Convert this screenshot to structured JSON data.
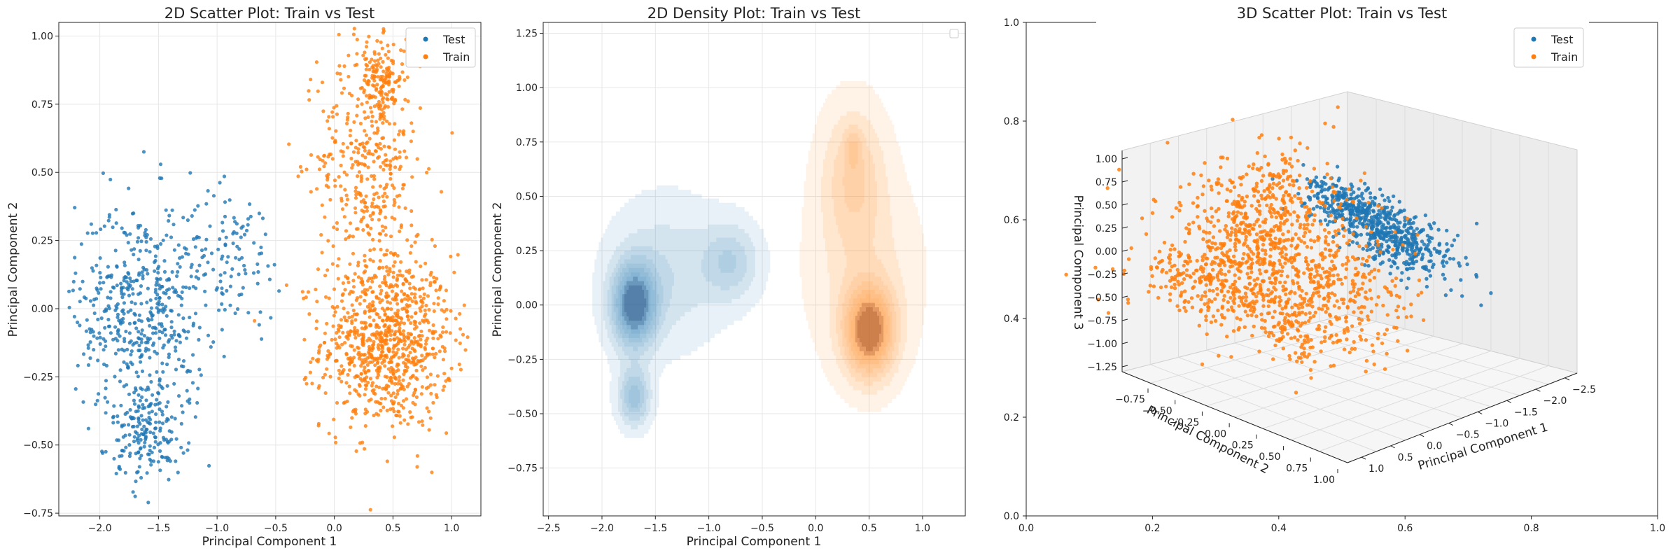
{
  "colors": {
    "test": "#1f77b4",
    "train": "#ff7f0e",
    "grid": "#e6e6e6"
  },
  "chart_data": [
    {
      "type": "scatter",
      "title": "2D Scatter Plot: Train vs Test",
      "xlabel": "Principal Component 1",
      "ylabel": "Principal Component 2",
      "xlim": [
        -2.35,
        1.25
      ],
      "ylim": [
        -0.76,
        1.05
      ],
      "xticks": [
        -2.0,
        -1.5,
        -1.0,
        -0.5,
        0.0,
        0.5,
        1.0
      ],
      "xtick_labels": [
        "−2.0",
        "−1.5",
        "−1.0",
        "−0.5",
        "0.0",
        "0.5",
        "1.0"
      ],
      "yticks": [
        -0.75,
        -0.5,
        -0.25,
        0.0,
        0.25,
        0.5,
        0.75,
        1.0
      ],
      "ytick_labels": [
        "−0.75",
        "−0.50",
        "−0.25",
        "0.00",
        "0.25",
        "0.50",
        "0.75",
        "1.00"
      ],
      "grid": true,
      "legend_position": "top-right",
      "series": [
        {
          "name": "Test",
          "clusters": [
            {
              "cx": -1.65,
              "cy": 0.0,
              "sx": 0.28,
              "sy": 0.2,
              "n": 500
            },
            {
              "cx": -1.6,
              "cy": -0.45,
              "sx": 0.15,
              "sy": 0.09,
              "n": 180
            },
            {
              "cx": -0.85,
              "cy": 0.2,
              "sx": 0.2,
              "sy": 0.12,
              "n": 100
            }
          ]
        },
        {
          "name": "Train",
          "clusters": [
            {
              "cx": 0.45,
              "cy": -0.12,
              "sx": 0.28,
              "sy": 0.16,
              "n": 900
            },
            {
              "cx": 0.3,
              "cy": 0.55,
              "sx": 0.22,
              "sy": 0.22,
              "n": 400
            },
            {
              "cx": 0.4,
              "cy": 0.85,
              "sx": 0.1,
              "sy": 0.07,
              "n": 120
            }
          ]
        }
      ]
    },
    {
      "type": "heatmap",
      "title": "2D Density Plot: Train vs Test",
      "xlabel": "Principal Component 1",
      "ylabel": "Principal Component 2",
      "xlim": [
        -2.55,
        1.4
      ],
      "ylim": [
        -0.97,
        1.3
      ],
      "xticks": [
        -2.5,
        -2.0,
        -1.5,
        -1.0,
        -0.5,
        0.0,
        0.5,
        1.0
      ],
      "xtick_labels": [
        "−2.5",
        "−2.0",
        "−1.5",
        "−1.0",
        "−0.5",
        "0.0",
        "0.5",
        "1.0"
      ],
      "yticks": [
        -0.75,
        -0.5,
        -0.25,
        0.0,
        0.25,
        0.5,
        0.75,
        1.0,
        1.25
      ],
      "ytick_labels": [
        "−0.75",
        "−0.50",
        "−0.25",
        "0.00",
        "0.25",
        "0.50",
        "0.75",
        "1.00",
        "1.25"
      ],
      "grid": true,
      "legend_position": "top-right",
      "levels": 9,
      "series": [
        {
          "kernels": [
            {
              "cx": -1.7,
              "cy": 0.0,
              "sx": 0.14,
              "sy": 0.13,
              "w": 1.0
            },
            {
              "cx": -1.7,
              "cy": -0.42,
              "sx": 0.1,
              "sy": 0.09,
              "w": 0.55
            },
            {
              "cx": -0.8,
              "cy": 0.2,
              "sx": 0.18,
              "sy": 0.12,
              "w": 0.35
            },
            {
              "cx": -1.4,
              "cy": 0.15,
              "sx": 0.35,
              "sy": 0.22,
              "w": 0.25
            }
          ]
        },
        {
          "kernels": [
            {
              "cx": 0.5,
              "cy": -0.12,
              "sx": 0.16,
              "sy": 0.14,
              "w": 1.0
            },
            {
              "cx": 0.35,
              "cy": 0.6,
              "sx": 0.2,
              "sy": 0.22,
              "w": 0.35
            },
            {
              "cx": 0.35,
              "cy": 0.72,
              "sx": 0.05,
              "sy": 0.06,
              "w": 0.25
            },
            {
              "cx": 0.45,
              "cy": 0.15,
              "sx": 0.35,
              "sy": 0.3,
              "w": 0.2
            }
          ]
        }
      ]
    },
    {
      "type": "scatter",
      "title": "3D Scatter Plot: Train vs Test",
      "xlabel": "Principal Component 1",
      "ylabel": "Principal Component 2",
      "zlabel": "Principal Component 3",
      "xticks": [
        1.0,
        0.5,
        0.0,
        -0.5,
        -1.0,
        -1.5,
        -2.0,
        -2.5
      ],
      "xtick_labels": [
        "1.0",
        "0.5",
        "0.0",
        "−0.5",
        "−1.0",
        "−1.5",
        "−2.0",
        "−2.5"
      ],
      "yticks": [
        -0.75,
        -0.5,
        -0.25,
        0.0,
        0.25,
        0.5,
        0.75,
        1.0
      ],
      "ytick_labels": [
        "−0.75",
        "−0.50",
        "−0.25",
        "0.00",
        "0.25",
        "0.50",
        "0.75",
        "1.00"
      ],
      "zticks": [
        1.0,
        0.75,
        0.5,
        0.25,
        0.0,
        -0.25,
        -0.5,
        -0.75,
        -1.0,
        -1.25
      ],
      "ztick_labels": [
        "1.00",
        "0.75",
        "0.50",
        "0.25",
        "0.00",
        "−0.25",
        "−0.50",
        "−0.75",
        "−1.00",
        "−1.25"
      ],
      "frame_xticks": [
        0.0,
        0.2,
        0.4,
        0.6,
        0.8,
        1.0
      ],
      "frame_xtick_labels": [
        "0.0",
        "0.2",
        "0.4",
        "0.6",
        "0.8",
        "1.0"
      ],
      "frame_yticks": [
        0.0,
        0.2,
        0.4,
        0.6,
        0.8,
        1.0
      ],
      "frame_ytick_labels": [
        "0.0",
        "0.2",
        "0.4",
        "0.6",
        "0.8",
        "1.0"
      ],
      "legend_position": "top-right",
      "series": [
        {
          "name": "Test"
        },
        {
          "name": "Train"
        }
      ]
    }
  ]
}
